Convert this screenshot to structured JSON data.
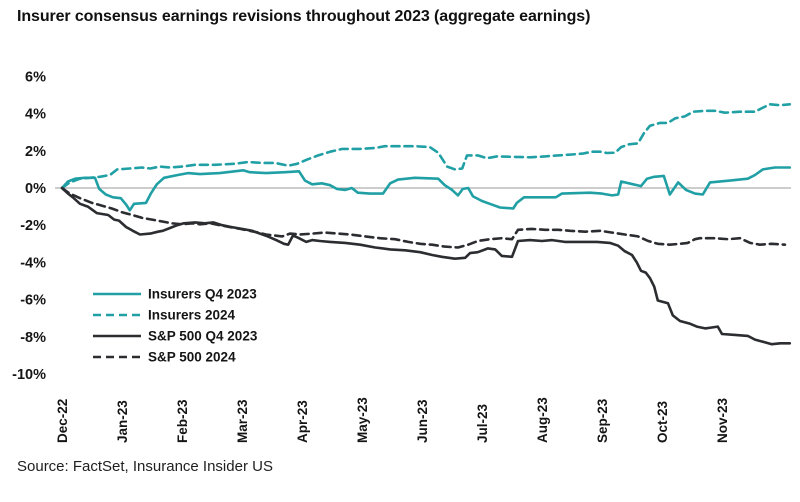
{
  "source_note": "Source: FactSet, Insurance Insider US",
  "chart_data": {
    "type": "line",
    "title": "Insurer consensus earnings revisions throughout 2023 (aggregate earnings)",
    "x_unit": "months since Dec-22",
    "x_tick_labels": [
      "Dec-22",
      "Jan-23",
      "Feb-23",
      "Mar-23",
      "Apr-23",
      "May-23",
      "Jun-23",
      "Jul-23",
      "Aug-23",
      "Sep-23",
      "Oct-23",
      "Nov-23"
    ],
    "y_tick_labels": [
      "6%",
      "4%",
      "2%",
      "0%",
      "-2%",
      "-4%",
      "-6%",
      "-8%",
      "-10%"
    ],
    "y_ticks_pct": [
      6,
      4,
      2,
      0,
      -2,
      -4,
      -6,
      -8,
      -10
    ],
    "ylim": [
      -10,
      6
    ],
    "grid": false,
    "zero_line": true,
    "legend_position": "inside-bottom-left",
    "colors": {
      "insurers": "#20a0a5",
      "sp500": "#2b2d31",
      "zero_line": "#9b9b9b"
    },
    "series": [
      {
        "name": "Insurers Q4 2023",
        "color": "#20a0a5",
        "dash": "solid",
        "points": [
          [
            0,
            0
          ],
          [
            0.1,
            0.35
          ],
          [
            0.22,
            0.5
          ],
          [
            0.38,
            0.55
          ],
          [
            0.55,
            0.55
          ],
          [
            0.62,
            -0.05
          ],
          [
            0.73,
            -0.35
          ],
          [
            0.85,
            -0.5
          ],
          [
            0.98,
            -0.55
          ],
          [
            1.07,
            -0.9
          ],
          [
            1.13,
            -1.2
          ],
          [
            1.2,
            -0.85
          ],
          [
            1.4,
            -0.8
          ],
          [
            1.48,
            -0.3
          ],
          [
            1.58,
            0.2
          ],
          [
            1.7,
            0.55
          ],
          [
            1.93,
            0.7
          ],
          [
            2.1,
            0.8
          ],
          [
            2.3,
            0.75
          ],
          [
            2.63,
            0.8
          ],
          [
            3.02,
            0.95
          ],
          [
            3.13,
            0.85
          ],
          [
            3.4,
            0.8
          ],
          [
            3.72,
            0.85
          ],
          [
            3.95,
            0.9
          ],
          [
            4.05,
            0.4
          ],
          [
            4.17,
            0.2
          ],
          [
            4.33,
            0.25
          ],
          [
            4.47,
            0.15
          ],
          [
            4.58,
            -0.05
          ],
          [
            4.72,
            -0.1
          ],
          [
            4.83,
            0.0
          ],
          [
            4.93,
            -0.25
          ],
          [
            5.13,
            -0.3
          ],
          [
            5.35,
            -0.3
          ],
          [
            5.47,
            0.25
          ],
          [
            5.6,
            0.45
          ],
          [
            5.88,
            0.55
          ],
          [
            6.27,
            0.5
          ],
          [
            6.38,
            0.15
          ],
          [
            6.5,
            -0.1
          ],
          [
            6.6,
            -0.4
          ],
          [
            6.68,
            -0.05
          ],
          [
            6.77,
            0.0
          ],
          [
            6.85,
            -0.45
          ],
          [
            7.0,
            -0.7
          ],
          [
            7.17,
            -0.9
          ],
          [
            7.3,
            -1.05
          ],
          [
            7.52,
            -1.1
          ],
          [
            7.58,
            -0.8
          ],
          [
            7.7,
            -0.5
          ],
          [
            8.23,
            -0.5
          ],
          [
            8.33,
            -0.3
          ],
          [
            8.8,
            -0.25
          ],
          [
            9.0,
            -0.3
          ],
          [
            9.17,
            -0.4
          ],
          [
            9.27,
            -0.35
          ],
          [
            9.32,
            0.35
          ],
          [
            9.52,
            0.2
          ],
          [
            9.65,
            0.1
          ],
          [
            9.75,
            0.5
          ],
          [
            9.87,
            0.6
          ],
          [
            10.03,
            0.65
          ],
          [
            10.13,
            -0.35
          ],
          [
            10.27,
            0.3
          ],
          [
            10.4,
            -0.1
          ],
          [
            10.55,
            -0.3
          ],
          [
            10.68,
            -0.35
          ],
          [
            10.8,
            0.3
          ],
          [
            11.13,
            0.4
          ],
          [
            11.43,
            0.5
          ],
          [
            11.55,
            0.7
          ],
          [
            11.68,
            1.0
          ],
          [
            11.88,
            1.1
          ],
          [
            12.13,
            1.1
          ]
        ]
      },
      {
        "name": "Insurers 2024",
        "color": "#20a0a5",
        "dash": "dashed",
        "points": [
          [
            0,
            0
          ],
          [
            0.13,
            0.3
          ],
          [
            0.3,
            0.5
          ],
          [
            0.63,
            0.6
          ],
          [
            0.8,
            0.7
          ],
          [
            0.92,
            1.0
          ],
          [
            1.13,
            1.05
          ],
          [
            1.33,
            1.1
          ],
          [
            1.47,
            1.05
          ],
          [
            1.63,
            1.15
          ],
          [
            1.8,
            1.1
          ],
          [
            2.0,
            1.15
          ],
          [
            2.22,
            1.25
          ],
          [
            2.55,
            1.25
          ],
          [
            2.88,
            1.3
          ],
          [
            3.1,
            1.4
          ],
          [
            3.33,
            1.35
          ],
          [
            3.55,
            1.35
          ],
          [
            3.77,
            1.2
          ],
          [
            3.92,
            1.3
          ],
          [
            4.1,
            1.55
          ],
          [
            4.27,
            1.75
          ],
          [
            4.47,
            1.95
          ],
          [
            4.67,
            2.1
          ],
          [
            4.97,
            2.1
          ],
          [
            5.22,
            2.15
          ],
          [
            5.38,
            2.25
          ],
          [
            5.88,
            2.25
          ],
          [
            6.13,
            2.2
          ],
          [
            6.27,
            1.9
          ],
          [
            6.42,
            1.15
          ],
          [
            6.55,
            1.0
          ],
          [
            6.67,
            1.05
          ],
          [
            6.75,
            1.75
          ],
          [
            6.93,
            1.75
          ],
          [
            7.08,
            1.6
          ],
          [
            7.25,
            1.7
          ],
          [
            7.8,
            1.65
          ],
          [
            8.05,
            1.7
          ],
          [
            8.27,
            1.75
          ],
          [
            8.5,
            1.8
          ],
          [
            8.68,
            1.85
          ],
          [
            8.83,
            1.95
          ],
          [
            8.97,
            1.95
          ],
          [
            9.08,
            1.88
          ],
          [
            9.22,
            1.9
          ],
          [
            9.32,
            2.2
          ],
          [
            9.45,
            2.35
          ],
          [
            9.6,
            2.4
          ],
          [
            9.7,
            2.95
          ],
          [
            9.8,
            3.35
          ],
          [
            9.97,
            3.5
          ],
          [
            10.1,
            3.5
          ],
          [
            10.22,
            3.75
          ],
          [
            10.38,
            3.85
          ],
          [
            10.52,
            4.1
          ],
          [
            10.72,
            4.15
          ],
          [
            10.88,
            4.15
          ],
          [
            11.05,
            4.05
          ],
          [
            11.3,
            4.1
          ],
          [
            11.55,
            4.1
          ],
          [
            11.67,
            4.3
          ],
          [
            11.8,
            4.5
          ],
          [
            11.97,
            4.45
          ],
          [
            12.13,
            4.5
          ]
        ]
      },
      {
        "name": "S&P 500 Q4 2023",
        "color": "#2b2d31",
        "dash": "solid",
        "points": [
          [
            0,
            0
          ],
          [
            0.1,
            -0.3
          ],
          [
            0.18,
            -0.5
          ],
          [
            0.3,
            -0.85
          ],
          [
            0.43,
            -1.0
          ],
          [
            0.58,
            -1.35
          ],
          [
            0.77,
            -1.45
          ],
          [
            0.87,
            -1.7
          ],
          [
            0.95,
            -1.75
          ],
          [
            1.07,
            -2.1
          ],
          [
            1.18,
            -2.3
          ],
          [
            1.3,
            -2.5
          ],
          [
            1.47,
            -2.45
          ],
          [
            1.6,
            -2.35
          ],
          [
            1.68,
            -2.3
          ],
          [
            1.8,
            -2.15
          ],
          [
            1.92,
            -2.0
          ],
          [
            2.03,
            -1.9
          ],
          [
            2.22,
            -1.85
          ],
          [
            2.38,
            -1.9
          ],
          [
            2.52,
            -1.85
          ],
          [
            2.67,
            -2.0
          ],
          [
            2.83,
            -2.1
          ],
          [
            3.0,
            -2.2
          ],
          [
            3.17,
            -2.3
          ],
          [
            3.3,
            -2.45
          ],
          [
            3.43,
            -2.6
          ],
          [
            3.57,
            -2.8
          ],
          [
            3.7,
            -3.0
          ],
          [
            3.77,
            -3.05
          ],
          [
            3.85,
            -2.55
          ],
          [
            3.95,
            -2.7
          ],
          [
            4.07,
            -2.9
          ],
          [
            4.17,
            -2.8
          ],
          [
            4.3,
            -2.85
          ],
          [
            4.47,
            -2.9
          ],
          [
            4.72,
            -2.95
          ],
          [
            4.97,
            -3.05
          ],
          [
            5.22,
            -3.2
          ],
          [
            5.47,
            -3.3
          ],
          [
            5.72,
            -3.35
          ],
          [
            5.97,
            -3.45
          ],
          [
            6.17,
            -3.6
          ],
          [
            6.33,
            -3.7
          ],
          [
            6.55,
            -3.8
          ],
          [
            6.72,
            -3.75
          ],
          [
            6.8,
            -3.5
          ],
          [
            6.93,
            -3.45
          ],
          [
            7.1,
            -3.25
          ],
          [
            7.22,
            -3.3
          ],
          [
            7.33,
            -3.65
          ],
          [
            7.5,
            -3.7
          ],
          [
            7.6,
            -2.85
          ],
          [
            7.8,
            -2.8
          ],
          [
            8.0,
            -2.85
          ],
          [
            8.17,
            -2.8
          ],
          [
            8.38,
            -2.9
          ],
          [
            8.63,
            -2.9
          ],
          [
            8.92,
            -2.9
          ],
          [
            9.13,
            -2.95
          ],
          [
            9.27,
            -3.1
          ],
          [
            9.38,
            -3.4
          ],
          [
            9.5,
            -3.6
          ],
          [
            9.58,
            -4.0
          ],
          [
            9.65,
            -4.45
          ],
          [
            9.73,
            -4.55
          ],
          [
            9.8,
            -4.85
          ],
          [
            9.87,
            -5.3
          ],
          [
            9.93,
            -6.05
          ],
          [
            10.1,
            -6.2
          ],
          [
            10.18,
            -6.85
          ],
          [
            10.3,
            -7.15
          ],
          [
            10.47,
            -7.3
          ],
          [
            10.58,
            -7.45
          ],
          [
            10.72,
            -7.55
          ],
          [
            10.83,
            -7.5
          ],
          [
            10.93,
            -7.45
          ],
          [
            11.0,
            -7.85
          ],
          [
            11.22,
            -7.9
          ],
          [
            11.43,
            -7.95
          ],
          [
            11.55,
            -8.15
          ],
          [
            11.72,
            -8.3
          ],
          [
            11.83,
            -8.4
          ],
          [
            11.97,
            -8.35
          ],
          [
            12.13,
            -8.35
          ]
        ]
      },
      {
        "name": "S&P 500 2024",
        "color": "#2b2d31",
        "dash": "dashed",
        "points": [
          [
            0,
            0
          ],
          [
            0.13,
            -0.3
          ],
          [
            0.3,
            -0.55
          ],
          [
            0.5,
            -0.8
          ],
          [
            0.67,
            -0.95
          ],
          [
            0.83,
            -1.1
          ],
          [
            1.0,
            -1.3
          ],
          [
            1.17,
            -1.45
          ],
          [
            1.33,
            -1.6
          ],
          [
            1.5,
            -1.7
          ],
          [
            1.67,
            -1.8
          ],
          [
            1.83,
            -1.9
          ],
          [
            2.0,
            -1.95
          ],
          [
            2.17,
            -1.9
          ],
          [
            2.3,
            -1.95
          ],
          [
            2.47,
            -1.9
          ],
          [
            2.63,
            -2.0
          ],
          [
            2.8,
            -2.1
          ],
          [
            2.97,
            -2.2
          ],
          [
            3.13,
            -2.3
          ],
          [
            3.27,
            -2.4
          ],
          [
            3.4,
            -2.5
          ],
          [
            3.53,
            -2.55
          ],
          [
            3.67,
            -2.6
          ],
          [
            3.8,
            -2.45
          ],
          [
            3.97,
            -2.5
          ],
          [
            4.17,
            -2.45
          ],
          [
            4.38,
            -2.4
          ],
          [
            4.6,
            -2.45
          ],
          [
            4.8,
            -2.5
          ],
          [
            5.05,
            -2.6
          ],
          [
            5.3,
            -2.7
          ],
          [
            5.55,
            -2.75
          ],
          [
            5.77,
            -2.9
          ],
          [
            5.97,
            -3.0
          ],
          [
            6.17,
            -3.05
          ],
          [
            6.38,
            -3.15
          ],
          [
            6.6,
            -3.2
          ],
          [
            6.77,
            -3.05
          ],
          [
            6.93,
            -2.85
          ],
          [
            7.13,
            -2.75
          ],
          [
            7.33,
            -2.7
          ],
          [
            7.5,
            -2.75
          ],
          [
            7.6,
            -2.25
          ],
          [
            7.83,
            -2.2
          ],
          [
            8.05,
            -2.25
          ],
          [
            8.27,
            -2.25
          ],
          [
            8.47,
            -2.3
          ],
          [
            8.72,
            -2.35
          ],
          [
            8.97,
            -2.3
          ],
          [
            9.17,
            -2.4
          ],
          [
            9.38,
            -2.5
          ],
          [
            9.6,
            -2.6
          ],
          [
            9.77,
            -2.85
          ],
          [
            9.93,
            -3.0
          ],
          [
            10.13,
            -3.05
          ],
          [
            10.3,
            -3.0
          ],
          [
            10.43,
            -2.95
          ],
          [
            10.55,
            -2.75
          ],
          [
            10.63,
            -2.7
          ],
          [
            10.88,
            -2.7
          ],
          [
            11.1,
            -2.75
          ],
          [
            11.3,
            -2.7
          ],
          [
            11.47,
            -2.95
          ],
          [
            11.63,
            -3.05
          ],
          [
            11.83,
            -3.0
          ],
          [
            12.05,
            -3.05
          ]
        ]
      }
    ]
  }
}
